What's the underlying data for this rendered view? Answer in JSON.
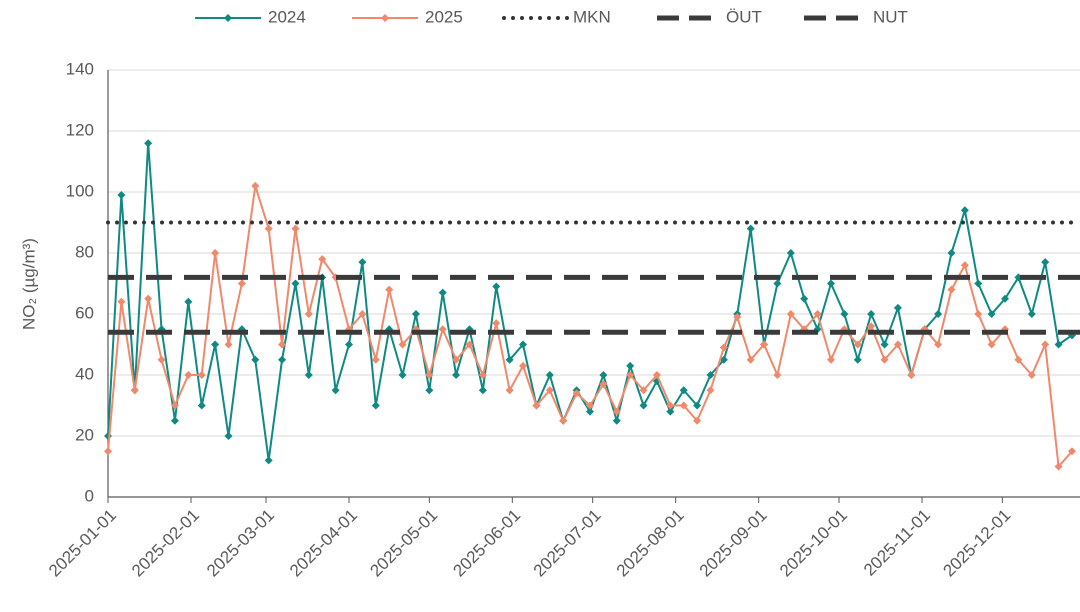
{
  "chart_data": {
    "type": "line",
    "y_label": "NO₂ (µg/m³)",
    "x": [
      "2025-01-01",
      "2025-01-06",
      "2025-01-11",
      "2025-01-16",
      "2025-01-21",
      "2025-01-26",
      "2025-01-31",
      "2025-02-05",
      "2025-02-10",
      "2025-02-15",
      "2025-02-20",
      "2025-02-25",
      "2025-03-02",
      "2025-03-07",
      "2025-03-12",
      "2025-03-17",
      "2025-03-22",
      "2025-03-27",
      "2025-04-01",
      "2025-04-06",
      "2025-04-11",
      "2025-04-16",
      "2025-04-21",
      "2025-04-26",
      "2025-05-01",
      "2025-05-06",
      "2025-05-11",
      "2025-05-16",
      "2025-05-21",
      "2025-05-26",
      "2025-05-31",
      "2025-06-05",
      "2025-06-10",
      "2025-06-15",
      "2025-06-20",
      "2025-06-25",
      "2025-06-30",
      "2025-07-05",
      "2025-07-10",
      "2025-07-15",
      "2025-07-20",
      "2025-07-25",
      "2025-07-30",
      "2025-08-04",
      "2025-08-09",
      "2025-08-14",
      "2025-08-19",
      "2025-08-24",
      "2025-08-29",
      "2025-09-03",
      "2025-09-08",
      "2025-09-13",
      "2025-09-18",
      "2025-09-23",
      "2025-09-28",
      "2025-10-03",
      "2025-10-08",
      "2025-10-13",
      "2025-10-18",
      "2025-10-23",
      "2025-10-28",
      "2025-11-02",
      "2025-11-07",
      "2025-11-12",
      "2025-11-17",
      "2025-11-22",
      "2025-11-27",
      "2025-12-02",
      "2025-12-07",
      "2025-12-12",
      "2025-12-17",
      "2025-12-22",
      "2025-12-27"
    ],
    "series": [
      {
        "name": "2024",
        "color": "#0e8a82",
        "values": [
          20,
          99,
          35,
          116,
          55,
          25,
          64,
          30,
          50,
          20,
          55,
          45,
          12,
          45,
          70,
          40,
          72,
          35,
          50,
          77,
          30,
          55,
          40,
          60,
          35,
          67,
          40,
          55,
          35,
          69,
          45,
          50,
          30,
          40,
          25,
          35,
          28,
          40,
          25,
          43,
          30,
          38,
          28,
          35,
          30,
          40,
          45,
          60,
          88,
          50,
          70,
          80,
          65,
          55,
          70,
          60,
          45,
          60,
          50,
          62,
          40,
          55,
          60,
          80,
          94,
          70,
          60,
          65,
          72,
          60,
          77,
          50,
          53
        ]
      },
      {
        "name": "2025",
        "color": "#f0896b",
        "values": [
          15,
          64,
          35,
          65,
          45,
          30,
          40,
          40,
          80,
          50,
          70,
          102,
          88,
          50,
          88,
          60,
          78,
          72,
          55,
          60,
          45,
          68,
          50,
          55,
          40,
          55,
          45,
          50,
          40,
          57,
          35,
          43,
          30,
          35,
          25,
          34,
          30,
          37,
          28,
          40,
          35,
          40,
          30,
          30,
          25,
          35,
          49,
          59,
          45,
          50,
          40,
          60,
          55,
          60,
          45,
          55,
          50,
          56,
          45,
          50,
          40,
          55,
          50,
          68,
          76,
          60,
          50,
          55,
          45,
          40,
          50,
          10,
          15
        ]
      },
      {
        "name": "MKN",
        "color": "#333333",
        "style": "dotted",
        "value": 90
      },
      {
        "name": "ÖUT",
        "color": "#3a3a3a",
        "style": "dashed",
        "value": 72
      },
      {
        "name": "NUT",
        "color": "#3a3a3a",
        "style": "dashed",
        "value": 54
      }
    ],
    "xlim": [
      "2025-01-01",
      "2025-12-30"
    ],
    "xticks": [
      "2025-01-01",
      "2025-02-01",
      "2025-03-01",
      "2025-04-01",
      "2025-05-01",
      "2025-06-01",
      "2025-07-01",
      "2025-08-01",
      "2025-09-01",
      "2025-10-01",
      "2025-11-01",
      "2025-12-01"
    ],
    "ylim": [
      0,
      140
    ],
    "yticks": [
      0,
      20,
      40,
      60,
      80,
      100,
      120,
      140
    ],
    "grid": true
  }
}
